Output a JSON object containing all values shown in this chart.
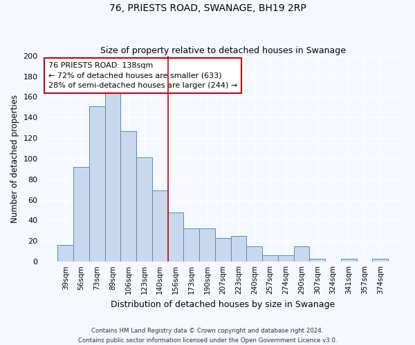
{
  "title": "76, PRIESTS ROAD, SWANAGE, BH19 2RP",
  "subtitle": "Size of property relative to detached houses in Swanage",
  "xlabel": "Distribution of detached houses by size in Swanage",
  "ylabel": "Number of detached properties",
  "bar_labels": [
    "39sqm",
    "56sqm",
    "73sqm",
    "89sqm",
    "106sqm",
    "123sqm",
    "140sqm",
    "156sqm",
    "173sqm",
    "190sqm",
    "207sqm",
    "223sqm",
    "240sqm",
    "257sqm",
    "274sqm",
    "290sqm",
    "307sqm",
    "324sqm",
    "341sqm",
    "357sqm",
    "374sqm"
  ],
  "bar_values": [
    16,
    92,
    151,
    165,
    127,
    101,
    69,
    48,
    32,
    32,
    23,
    25,
    15,
    6,
    6,
    15,
    3,
    0,
    3,
    0,
    3
  ],
  "bar_color": "#c9d9ed",
  "bar_edge_color": "#5588bb",
  "ylim": [
    0,
    200
  ],
  "yticks": [
    0,
    20,
    40,
    60,
    80,
    100,
    120,
    140,
    160,
    180,
    200
  ],
  "vline_x": 6,
  "vline_color": "#cc0000",
  "annotation_text": "76 PRIESTS ROAD: 138sqm\n← 72% of detached houses are smaller (633)\n28% of semi-detached houses are larger (244) →",
  "annotation_box_facecolor": "white",
  "annotation_box_edgecolor": "#cc0000",
  "footer_line1": "Contains HM Land Registry data © Crown copyright and database right 2024.",
  "footer_line2": "Contains public sector information licensed under the Open Government Licence v3.0.",
  "fig_facecolor": "#f5f8ff",
  "ax_facecolor": "#f5f8ff",
  "grid_color": "#ffffff",
  "title_fontsize": 10,
  "subtitle_fontsize": 9,
  "ylabel_fontsize": 8.5,
  "xlabel_fontsize": 9
}
